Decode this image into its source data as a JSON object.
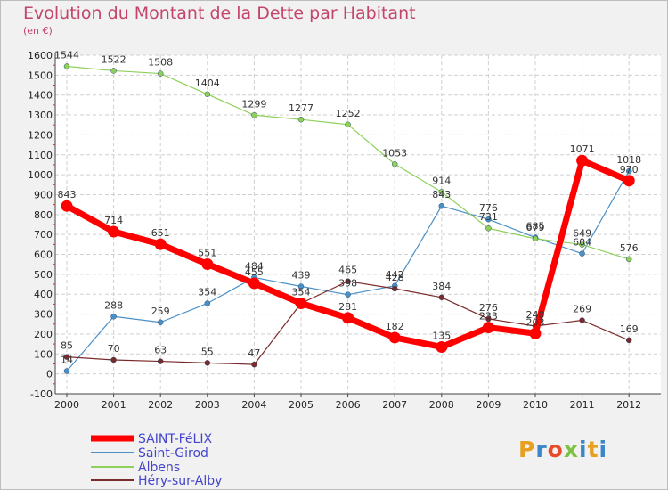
{
  "header": {
    "title": "Evolution du Montant de la Dette par Habitant",
    "subtitle": "(en €)"
  },
  "logo": {
    "text": "Proxiti",
    "letter_colors": [
      "#e8a020",
      "#3a86c8",
      "#e84a2a",
      "#7cc242",
      "#3a86c8",
      "#e8a020",
      "#3a86c8"
    ]
  },
  "chart_data": {
    "type": "line",
    "title": "Evolution du Montant de la Dette par Habitant",
    "subtitle": "(en €)",
    "xlabel": "",
    "ylabel": "",
    "x": [
      "2000",
      "2001",
      "2002",
      "2003",
      "2004",
      "2005",
      "2006",
      "2007",
      "2008",
      "2009",
      "2010",
      "2011",
      "2012"
    ],
    "ylim": [
      -100,
      1600
    ],
    "yticks": [
      -100,
      0,
      100,
      200,
      300,
      400,
      500,
      600,
      700,
      800,
      900,
      1000,
      1100,
      1200,
      1300,
      1400,
      1500,
      1600
    ],
    "grid": true,
    "legend_position": "bottom-left",
    "series": [
      {
        "name": "SAINT-FéLIX",
        "color": "#ff0000",
        "values": [
          843,
          714,
          651,
          551,
          455,
          354,
          281,
          182,
          135,
          233,
          203,
          1071,
          970
        ],
        "value_labels": [
          "843",
          "714",
          "651",
          "551",
          "455",
          "354",
          "281",
          "182",
          "135",
          "233",
          "203",
          "1071",
          "970"
        ]
      },
      {
        "name": "Saint-Girod",
        "color": "#4a90c8",
        "values": [
          14,
          288,
          259,
          354,
          484,
          439,
          398,
          442,
          843,
          776,
          685,
          604,
          1018
        ],
        "value_labels": [
          "14",
          "288",
          "259",
          "354",
          "484",
          "439",
          "398",
          "442",
          "843",
          "776",
          "685",
          "604",
          "1018"
        ]
      },
      {
        "name": "Albens",
        "color": "#8ed05a",
        "values": [
          1544,
          1522,
          1508,
          1404,
          1299,
          1277,
          1252,
          1053,
          914,
          731,
          679,
          649,
          576
        ],
        "value_labels": [
          "1544",
          "1522",
          "1508",
          "1404",
          "1299",
          "1277",
          "1252",
          "1053",
          "914",
          "731",
          "679",
          "649",
          "576"
        ]
      },
      {
        "name": "Héry-sur-Alby",
        "color": "#7a2a2a",
        "values": [
          85,
          70,
          63,
          55,
          47,
          354,
          465,
          428,
          384,
          276,
          240,
          269,
          169
        ],
        "value_labels": [
          "85",
          "70",
          "63",
          "55",
          "47",
          "",
          "465",
          "428",
          "384",
          "276",
          "240",
          "269",
          "169"
        ]
      }
    ]
  }
}
